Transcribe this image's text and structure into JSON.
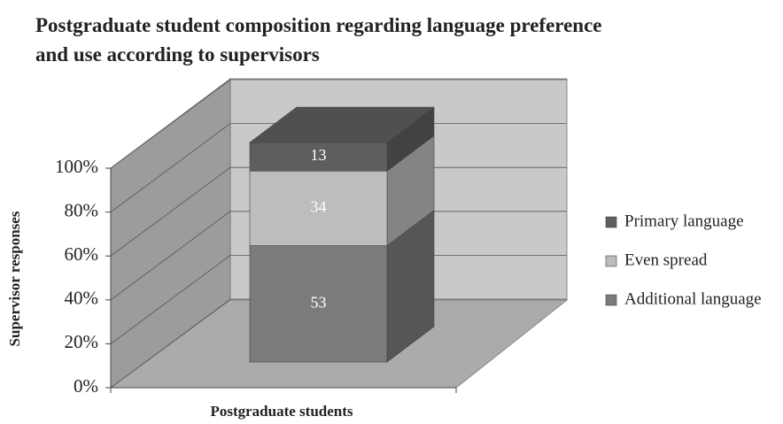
{
  "chart_data": {
    "type": "stacked-bar-3d",
    "title": "Postgraduate student composition regarding language preference and use according to supervisors",
    "x_label": "Postgraduate students",
    "y_label": "Supervisor responses",
    "categories": [
      null
    ],
    "series": [
      {
        "name": "Additional language",
        "color": "#7b7b7b",
        "values": [
          53
        ]
      },
      {
        "name": "Even spread",
        "color": "#bdbdbd",
        "values": [
          34
        ]
      },
      {
        "name": "Primary language",
        "color": "#5e5e5e",
        "values": [
          13
        ]
      }
    ],
    "ylim": [
      0,
      100
    ],
    "yticks": [
      {
        "value": 0,
        "label": "0%"
      },
      {
        "value": 20,
        "label": "20%"
      },
      {
        "value": 40,
        "label": "40%"
      },
      {
        "value": 60,
        "label": "60%"
      },
      {
        "value": 80,
        "label": "80%"
      },
      {
        "value": 100,
        "label": "100%"
      }
    ],
    "grid": true,
    "legend": "right"
  }
}
